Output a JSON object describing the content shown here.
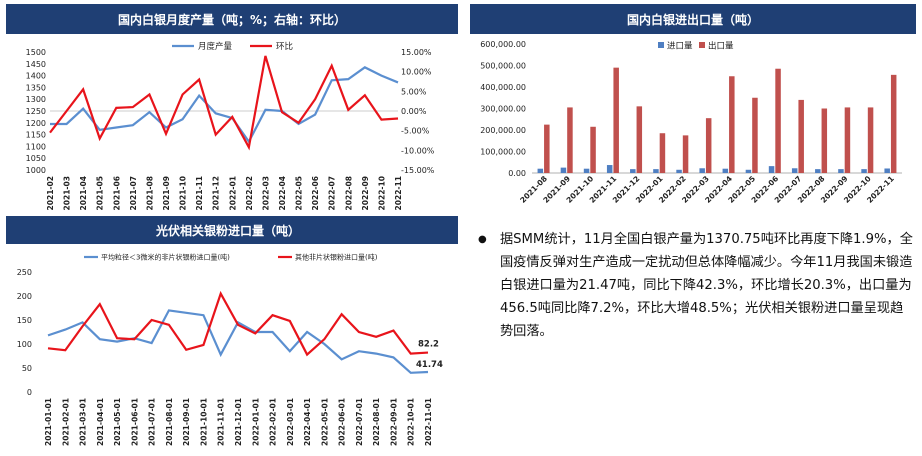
{
  "panels": {
    "p1_title": "国内白银月度产量（吨；%；右轴：环比）",
    "p2_title": "国内白银进出口量（吨）",
    "p3_title": "光伏相关银粉进口量（吨）"
  },
  "commentary": {
    "text": "据SMM统计，11月全国白银产量为1370.75吨环比再度下降1.9%，全国疫情反弹对生产造成一定扰动但总体降幅减少。今年11月我国未锻造白银进口量为21.47吨，同比下降42.3%，环比增长20.3%，出口量为456.5吨同比降7.2%，环比大增48.5%；光伏相关银粉进口量呈现趋势回落。"
  },
  "colors": {
    "header": "#1f3f74",
    "blue": "#5b8fd0",
    "red": "#e8141b",
    "bar_blue": "#4f7fc2",
    "bar_red": "#c0504d"
  },
  "chart_data": [
    {
      "type": "line",
      "title": "国内白银月度产量（吨；%；右轴：环比）",
      "categories": [
        "2021-02",
        "2021-03",
        "2021-04",
        "2021-05",
        "2021-06",
        "2021-07",
        "2021-08",
        "2021-09",
        "2021-10",
        "2021-11",
        "2021-12",
        "2022-01",
        "2022-02",
        "2022-03",
        "2022-04",
        "2022-05",
        "2022-06",
        "2022-07",
        "2022-08",
        "2022-09",
        "2022-10",
        "2022-11"
      ],
      "y_ticks": [
        "1000",
        "1050",
        "1100",
        "1150",
        "1200",
        "1250",
        "1300",
        "1350",
        "1400",
        "1450",
        "1500"
      ],
      "y2_ticks": [
        "-15.00%",
        "-10.00%",
        "-5.00%",
        "0.00%",
        "5.00%",
        "10.00%",
        "15.00%"
      ],
      "ylim": [
        1000,
        1500
      ],
      "y2lim": [
        -15,
        15
      ],
      "series": [
        {
          "name": "月度产量",
          "axis": "left",
          "values": [
            1195,
            1195,
            1260,
            1170,
            1180,
            1190,
            1245,
            1180,
            1215,
            1315,
            1240,
            1220,
            1120,
            1255,
            1250,
            1195,
            1235,
            1380,
            1385,
            1435,
            1400,
            1371
          ]
        },
        {
          "name": "环比",
          "axis": "right",
          "values": [
            -5.5,
            0,
            5.5,
            -7,
            0.8,
            1,
            4.2,
            -5.8,
            4.2,
            8,
            -6,
            -1.5,
            -9.2,
            14,
            -0.3,
            -3,
            3,
            11.5,
            0.3,
            4,
            -2.2,
            -1.9
          ]
        }
      ]
    },
    {
      "type": "bar",
      "title": "国内白银进出口量（吨）",
      "categories": [
        "2021-08",
        "2021-09",
        "2021-10",
        "2021-11",
        "2021-12",
        "2022-01",
        "2022-02",
        "2022-03",
        "2022-04",
        "2022-05",
        "2022-06",
        "2022-07",
        "2022-08",
        "2022-09",
        "2022-10",
        "2022-11"
      ],
      "y_ticks": [
        "0.00",
        "100,000.00",
        "200,000.00",
        "300,000.00",
        "400,000.00",
        "500,000.00",
        "600,000.00"
      ],
      "ylim": [
        0,
        600000
      ],
      "series": [
        {
          "name": "进口量",
          "values": [
            20000,
            25000,
            20000,
            37000,
            18000,
            18000,
            15000,
            22000,
            20000,
            15000,
            32000,
            22000,
            18000,
            18000,
            18000,
            21000
          ]
        },
        {
          "name": "出口量",
          "values": [
            225000,
            305000,
            215000,
            490000,
            310000,
            185000,
            175000,
            255000,
            450000,
            350000,
            485000,
            340000,
            300000,
            305000,
            305000,
            456500
          ]
        }
      ]
    },
    {
      "type": "line",
      "title": "光伏相关银粉进口量（吨）",
      "categories": [
        "2021-01-01",
        "2021-02-01",
        "2021-03-01",
        "2021-04-01",
        "2021-05-01",
        "2021-06-01",
        "2021-07-01",
        "2021-08-01",
        "2021-09-01",
        "2021-10-01",
        "2021-11-01",
        "2021-12-01",
        "2022-01-01",
        "2022-02-01",
        "2022-03-01",
        "2022-04-01",
        "2022-05-01",
        "2022-06-01",
        "2022-07-01",
        "2022-08-01",
        "2022-09-01",
        "2022-10-01",
        "2022-11-01"
      ],
      "y_ticks": [
        "0",
        "50",
        "100",
        "150",
        "200",
        "250"
      ],
      "ylim": [
        0,
        250
      ],
      "series": [
        {
          "name": "平均粒径＜3微米的非片状银粉进口量(吨)",
          "values": [
            118,
            130,
            145,
            110,
            105,
            112,
            102,
            170,
            165,
            160,
            78,
            145,
            125,
            125,
            85,
            125,
            100,
            68,
            85,
            80,
            72,
            40,
            41.74
          ]
        },
        {
          "name": "其他非片状银粉进口量(吨)",
          "values": [
            91,
            87,
            137,
            183,
            112,
            110,
            150,
            140,
            88,
            98,
            205,
            140,
            122,
            160,
            148,
            78,
            110,
            162,
            125,
            115,
            128,
            80,
            82.2
          ]
        }
      ],
      "end_labels": [
        "41.74",
        "82.2"
      ]
    }
  ]
}
